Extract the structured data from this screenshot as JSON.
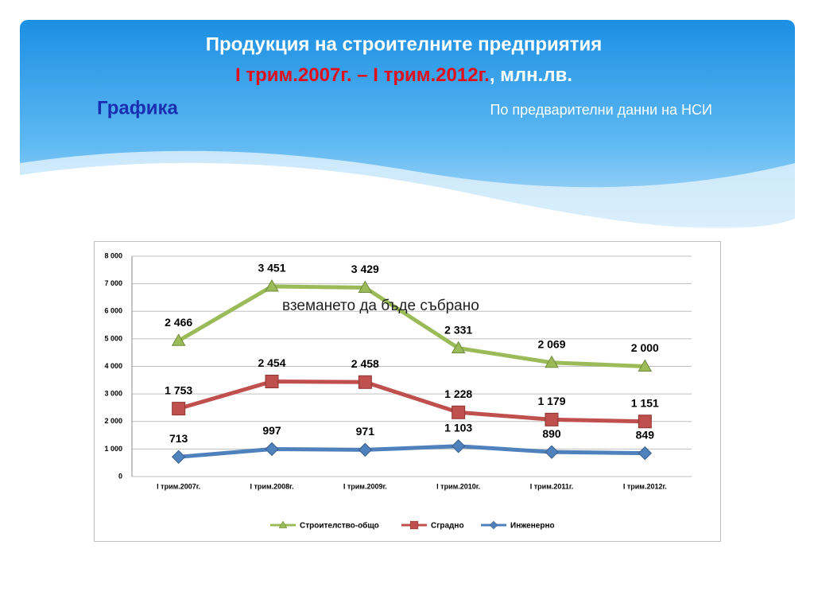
{
  "header": {
    "title": "Продукция на строителните предприятия",
    "period": "I трим.2007г. – I трим.2012г.",
    "unit": ", млн.лв.",
    "section": "Графика",
    "source": "По предварителни данни на НСИ"
  },
  "chart_data": {
    "type": "line",
    "stacked": true,
    "categories": [
      "I трим.2007г.",
      "I трим.2008г.",
      "I трим.2009г.",
      "I трим.2010г.",
      "I трим.2011г.",
      "I трим.2012г."
    ],
    "series": [
      {
        "name": "Строителство-общо",
        "color": "#9bbb59",
        "marker": "triangle",
        "values": [
          2466,
          3451,
          3429,
          2331,
          2069,
          2000
        ],
        "value_labels": [
          "2 466",
          "3 451",
          "3 429",
          "2 331",
          "2 069",
          "2 000"
        ]
      },
      {
        "name": "Сградно",
        "color": "#c0504d",
        "marker": "square",
        "values": [
          1753,
          2454,
          2458,
          1228,
          1179,
          1151
        ],
        "value_labels": [
          "1 753",
          "2 454",
          "2 458",
          "1 228",
          "1 179",
          "1 151"
        ]
      },
      {
        "name": "Инженерно",
        "color": "#4f81bd",
        "marker": "diamond",
        "values": [
          713,
          997,
          971,
          1103,
          890,
          849
        ],
        "value_labels": [
          "713",
          "997",
          "971",
          "1 103",
          "890",
          "849"
        ]
      }
    ],
    "ylim": [
      0,
      8000
    ],
    "yticks": [
      0,
      {
        "value": 1000,
        "label": "1 000"
      },
      {
        "value": 2000,
        "label": "2 000"
      },
      {
        "value": 3000,
        "label": "3 000"
      },
      {
        "value": 4000,
        "label": "4 000"
      },
      {
        "value": 5000,
        "label": "5 000"
      },
      {
        "value": 6000,
        "label": "6 000"
      },
      {
        "value": 7000,
        "label": "7 000"
      },
      {
        "value": 8000,
        "label": "8 000"
      }
    ],
    "grid": true,
    "legend": "bottom",
    "annotation": "вземането да бъде събрано"
  }
}
